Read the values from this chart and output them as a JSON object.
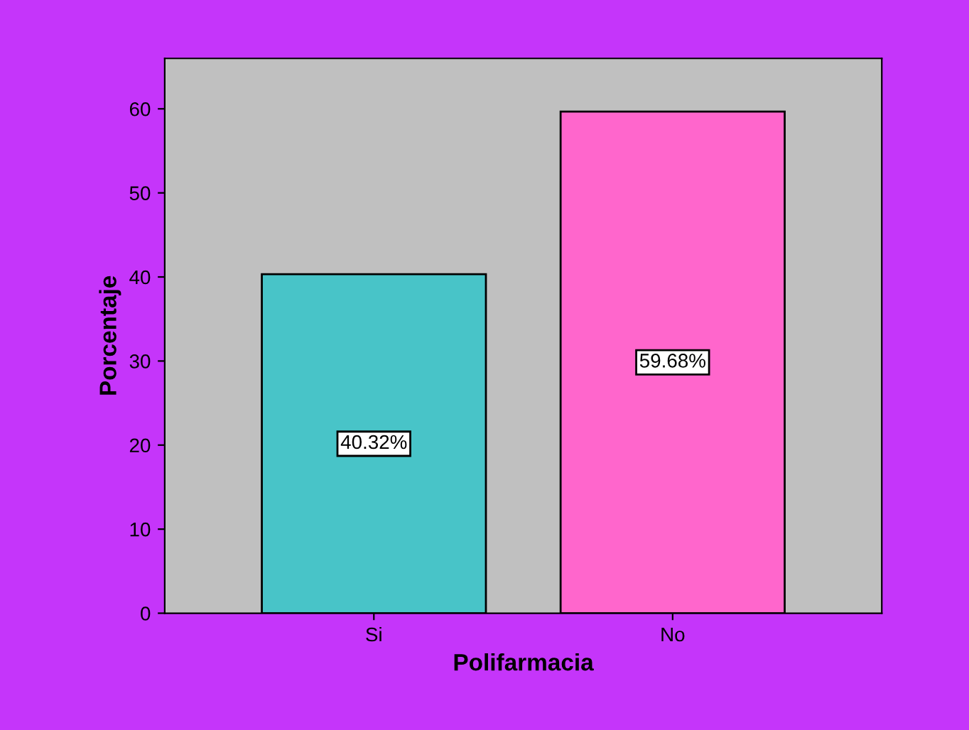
{
  "chart_data": {
    "type": "bar",
    "xlabel": "Polifarmacia",
    "ylabel": "Porcentaje",
    "categories": [
      "Si",
      "No"
    ],
    "values": [
      40.32,
      59.68
    ],
    "colors": [
      "#48c4c8",
      "#ff66cc"
    ],
    "value_labels": [
      "40.32%",
      "59.68%"
    ],
    "ylim": [
      0,
      66
    ],
    "yticks": [
      0,
      10,
      20,
      30,
      40,
      50,
      60
    ],
    "grid": false
  }
}
